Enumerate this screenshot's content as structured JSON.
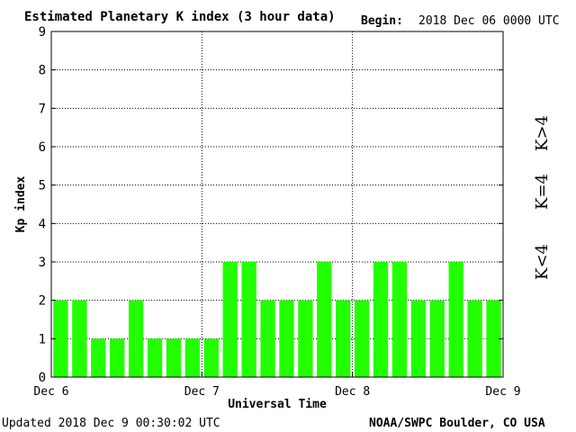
{
  "header": {
    "title": "Estimated Planetary K index (3 hour data)",
    "begin_label": "Begin:",
    "begin_value": "2018 Dec 06 0000 UTC"
  },
  "footer": {
    "updated": "Updated 2018 Dec  9 00:30:02 UTC",
    "source": "NOAA/SWPC Boulder, CO USA"
  },
  "legend": [
    {
      "label": "K<4",
      "color": "#22dd22"
    },
    {
      "label": "K=4",
      "color": "#ffcc00"
    },
    {
      "label": "K>4",
      "color": "#ff2200"
    }
  ],
  "chart_data": {
    "type": "bar",
    "xlabel": "Universal Time",
    "ylabel": "Kp index",
    "ylim": [
      0,
      9
    ],
    "yticks": [
      0,
      1,
      2,
      3,
      4,
      5,
      6,
      7,
      8,
      9
    ],
    "xticks": [
      "Dec 6",
      "Dec 7",
      "Dec 8",
      "Dec 9"
    ],
    "values": [
      2,
      2,
      1,
      1,
      2,
      1,
      1,
      1,
      1,
      3,
      3,
      2,
      2,
      2,
      3,
      2,
      2,
      3,
      3,
      2,
      2,
      3,
      2,
      2
    ],
    "bar_color": "#22ff00",
    "grid": true
  }
}
